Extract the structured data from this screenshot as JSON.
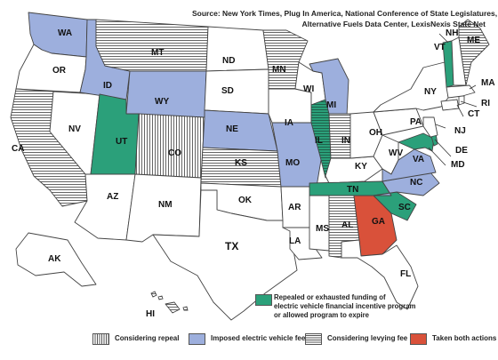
{
  "source": {
    "line1": "Source: New York Times, Plug In America, National Conference of State Legislatures,",
    "line2": "Alternative Fuels Data Center, LexisNexis State Net"
  },
  "colors": {
    "repealed": "#2ba07a",
    "imposed_fee": "#9dafdd",
    "taken_both": "#d9513a",
    "hatch_stroke": "#555555",
    "default_fill": "#ffffff",
    "border": "#444444"
  },
  "legend": {
    "repealed_note": [
      "Repealed or exhausted funding of",
      "electric vehicle financial incentive program",
      "or allowed program to expire"
    ],
    "items": [
      {
        "key": "considering_repeal",
        "label": "Considering repeal"
      },
      {
        "key": "imposed_fee",
        "label": "Imposed electric vehicle fee"
      },
      {
        "key": "considering_levying",
        "label": "Considering levying fee"
      },
      {
        "key": "taken_both",
        "label": "Taken both actions"
      }
    ]
  },
  "states": [
    {
      "code": "WA",
      "category": "imposed_fee"
    },
    {
      "code": "OR",
      "category": "none"
    },
    {
      "code": "CA",
      "category": "considering_levying"
    },
    {
      "code": "NV",
      "category": "none"
    },
    {
      "code": "ID",
      "category": "imposed_fee"
    },
    {
      "code": "MT",
      "category": "considering_levying"
    },
    {
      "code": "WY",
      "category": "imposed_fee"
    },
    {
      "code": "UT",
      "category": "repealed"
    },
    {
      "code": "AZ",
      "category": "none"
    },
    {
      "code": "CO",
      "category": "considering_repeal"
    },
    {
      "code": "NM",
      "category": "none"
    },
    {
      "code": "ND",
      "category": "none"
    },
    {
      "code": "SD",
      "category": "none"
    },
    {
      "code": "NE",
      "category": "imposed_fee"
    },
    {
      "code": "KS",
      "category": "considering_levying"
    },
    {
      "code": "OK",
      "category": "none"
    },
    {
      "code": "TX",
      "category": "none"
    },
    {
      "code": "MN",
      "category": "considering_levying"
    },
    {
      "code": "IA",
      "category": "none"
    },
    {
      "code": "MO",
      "category": "imposed_fee"
    },
    {
      "code": "AR",
      "category": "none"
    },
    {
      "code": "LA",
      "category": "none"
    },
    {
      "code": "WI",
      "category": "none"
    },
    {
      "code": "IL",
      "category": "repealed_and_levying"
    },
    {
      "code": "MS",
      "category": "none"
    },
    {
      "code": "MI",
      "category": "imposed_fee"
    },
    {
      "code": "IN",
      "category": "considering_levying"
    },
    {
      "code": "KY",
      "category": "none"
    },
    {
      "code": "TN",
      "category": "repealed"
    },
    {
      "code": "AL",
      "category": "considering_levying"
    },
    {
      "code": "OH",
      "category": "none"
    },
    {
      "code": "WV",
      "category": "none"
    },
    {
      "code": "GA",
      "category": "taken_both"
    },
    {
      "code": "FL",
      "category": "none"
    },
    {
      "code": "SC",
      "category": "repealed"
    },
    {
      "code": "NC",
      "category": "imposed_fee"
    },
    {
      "code": "VA",
      "category": "imposed_fee"
    },
    {
      "code": "PA",
      "category": "none"
    },
    {
      "code": "NY",
      "category": "none"
    },
    {
      "code": "MD",
      "category": "repealed"
    },
    {
      "code": "DE",
      "category": "repealed"
    },
    {
      "code": "NJ",
      "category": "none"
    },
    {
      "code": "CT",
      "category": "none"
    },
    {
      "code": "RI",
      "category": "none"
    },
    {
      "code": "MA",
      "category": "none"
    },
    {
      "code": "VT",
      "category": "repealed"
    },
    {
      "code": "NH",
      "category": "none"
    },
    {
      "code": "ME",
      "category": "considering_levying"
    },
    {
      "code": "AK",
      "category": "none"
    },
    {
      "code": "HI",
      "category": "considering_levying"
    }
  ]
}
